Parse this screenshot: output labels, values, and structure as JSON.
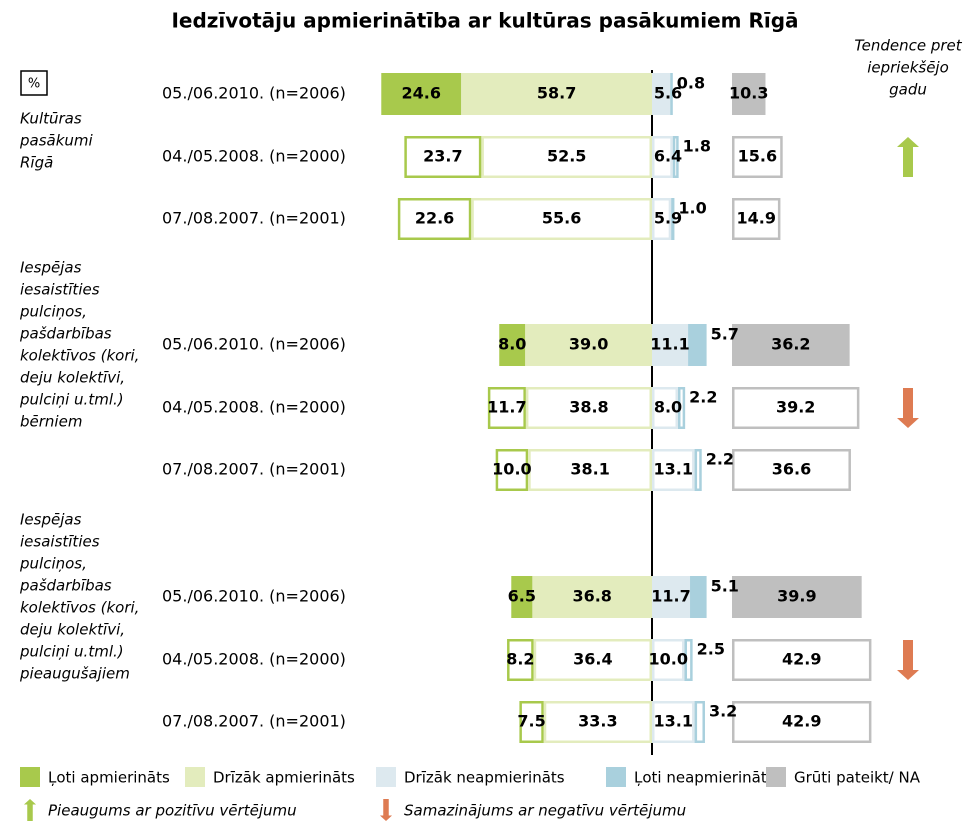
{
  "chart_data": {
    "type": "diverging_bar",
    "title": "Iedzīvotāju apmierinātība ar kultūras pasākumiem Rīgā",
    "unit_label": "%",
    "trend_header": [
      "Tendence pret",
      "iepriekšējo",
      "gadu"
    ],
    "categories": [
      "05./06.2010. (n=2006)",
      "04./05.2008. (n=2000)",
      "07./08.2007. (n=2001)",
      "05./06.2010. (n=2006)",
      "04./05.2008. (n=2000)",
      "07./08.2007. (n=2001)",
      "05./06.2010. (n=2006)",
      "04./05.2008. (n=2000)",
      "07./08.2007. (n=2001)"
    ],
    "filled": [
      true,
      false,
      false,
      true,
      false,
      false,
      true,
      false,
      false
    ],
    "groups": [
      {
        "label": [
          "Kultūras",
          "pasākumi",
          "Rīgā"
        ],
        "trend": "up"
      },
      {
        "label": [
          "Iespējas",
          "iesaistīties",
          "pulciņos,",
          "pašdarbības",
          "kolektīvos (kori,",
          "deju kolektīvi,",
          "pulciņi u.tml.)",
          "bērniem"
        ],
        "trend": "down"
      },
      {
        "label": [
          "Iespējas",
          "iesaistīties",
          "pulciņos,",
          "pašdarbības",
          "kolektīvos (kori,",
          "deju kolektīvi,",
          "pulciņi u.tml.)",
          "pieaugušajiem"
        ],
        "trend": "down"
      }
    ],
    "series": [
      {
        "name": "Ļoti apmierināts",
        "color": "#a8c94c",
        "values": [
          24.6,
          23.7,
          22.6,
          8.0,
          11.7,
          10.0,
          6.5,
          8.2,
          7.5
        ],
        "value_labels": [
          "24.6",
          "23.7",
          "22.6",
          "8.0",
          "11.7",
          "10.0",
          "6.5",
          "8.2",
          "7.5"
        ]
      },
      {
        "name": "Drīzāk apmierināts",
        "color": "#e3ecbd",
        "values": [
          58.7,
          52.5,
          55.6,
          39.0,
          38.8,
          38.1,
          36.8,
          36.4,
          33.3
        ],
        "value_labels": [
          "58.7",
          "52.5",
          "55.6",
          "39.0",
          "38.8",
          "38.1",
          "36.8",
          "36.4",
          "33.3"
        ]
      },
      {
        "name": "Drīzāk neapmierināts",
        "color": "#dde9ef",
        "values": [
          5.6,
          6.4,
          5.9,
          11.1,
          8.0,
          13.1,
          11.7,
          10.0,
          13.1
        ],
        "value_labels": [
          "5.6",
          "6.4",
          "5.9",
          "11.1",
          "8.0",
          "13.1",
          "11.7",
          "10.0",
          "13.1"
        ]
      },
      {
        "name": "Ļoti neapmierināts",
        "color": "#a9d0dd",
        "values": [
          0.8,
          1.8,
          1.0,
          5.7,
          2.2,
          2.2,
          5.1,
          2.5,
          3.2
        ],
        "value_labels": [
          "0.8",
          "1.8",
          "1.0",
          "5.7",
          "2.2",
          "2.2",
          "5.1",
          "2.5",
          "3.2"
        ]
      },
      {
        "name": "Grūti pateikt/ NA",
        "color": "#bfbfbf",
        "values": [
          10.3,
          15.6,
          14.9,
          36.2,
          39.2,
          36.6,
          39.9,
          42.9,
          42.9
        ],
        "value_labels": [
          "10.3",
          "15.6",
          "14.9",
          "36.2",
          "39.2",
          "36.6",
          "39.9",
          "42.9",
          "42.9"
        ]
      }
    ],
    "trend_legend": [
      {
        "direction": "up",
        "color": "#a8c94c",
        "label": "Pieaugums ar pozitīvu vērtējumu"
      },
      {
        "direction": "down",
        "color": "#de7b52",
        "label": "Samazinājums ar negatīvu vērtējumu"
      }
    ]
  }
}
